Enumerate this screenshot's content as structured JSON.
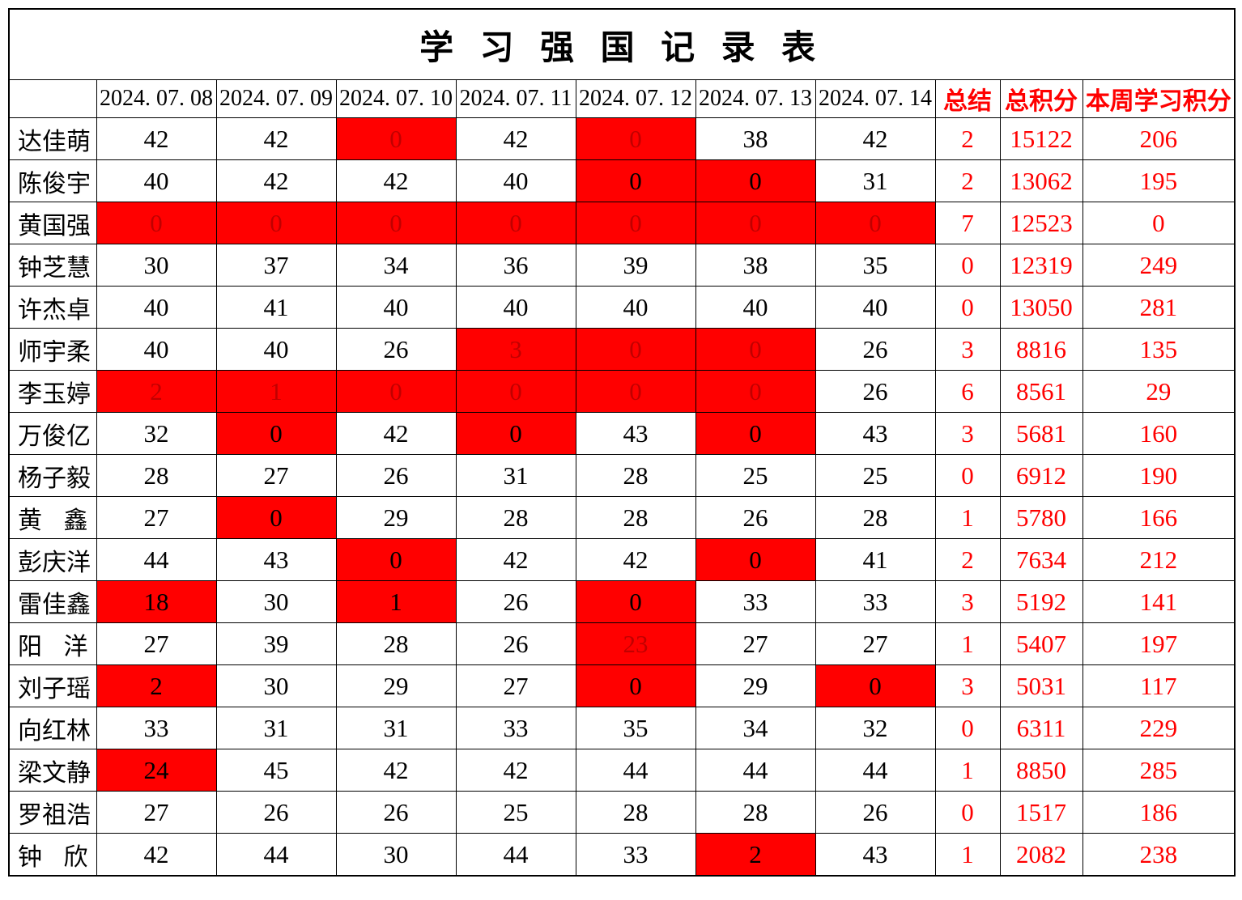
{
  "title": "学 习 强 国 记 录 表",
  "colors": {
    "background": "#ffffff",
    "grid_line": "#000000",
    "text": "#000000",
    "accent_text": "#ff0000",
    "highlight_bg": "#ff0000",
    "highlight_text_dark": "#c00000",
    "highlight_text_black": "#000000"
  },
  "table": {
    "columns": [
      {
        "label": "",
        "type": "corner"
      },
      {
        "label": "2024. 07. 08",
        "type": "date"
      },
      {
        "label": "2024. 07. 09",
        "type": "date"
      },
      {
        "label": "2024. 07. 10",
        "type": "date"
      },
      {
        "label": "2024. 07. 11",
        "type": "date"
      },
      {
        "label": "2024. 07. 12",
        "type": "date"
      },
      {
        "label": "2024. 07. 13",
        "type": "date"
      },
      {
        "label": "2024. 07. 14",
        "type": "date"
      },
      {
        "label": "总结",
        "type": "summary"
      },
      {
        "label": "总积分",
        "type": "summary"
      },
      {
        "label": "本周学习积分",
        "type": "summary"
      }
    ],
    "rows": [
      {
        "name": "达佳萌",
        "days": [
          {
            "v": "42"
          },
          {
            "v": "42"
          },
          {
            "v": "0",
            "bg": "red",
            "fg": "dark"
          },
          {
            "v": "42"
          },
          {
            "v": "0",
            "bg": "red",
            "fg": "dark"
          },
          {
            "v": "38"
          },
          {
            "v": "42"
          }
        ],
        "summary": "2",
        "total_points": "15122",
        "week_points": "206"
      },
      {
        "name": "陈俊宇",
        "days": [
          {
            "v": "40"
          },
          {
            "v": "42"
          },
          {
            "v": "42"
          },
          {
            "v": "40"
          },
          {
            "v": "0",
            "bg": "red",
            "fg": "black"
          },
          {
            "v": "0",
            "bg": "red",
            "fg": "black"
          },
          {
            "v": "31"
          }
        ],
        "summary": "2",
        "total_points": "13062",
        "week_points": "195"
      },
      {
        "name": "黄国强",
        "days": [
          {
            "v": "0",
            "bg": "red",
            "fg": "dark"
          },
          {
            "v": "0",
            "bg": "red",
            "fg": "dark"
          },
          {
            "v": "0",
            "bg": "red",
            "fg": "dark"
          },
          {
            "v": "0",
            "bg": "red",
            "fg": "dark"
          },
          {
            "v": "0",
            "bg": "red",
            "fg": "dark"
          },
          {
            "v": "0",
            "bg": "red",
            "fg": "dark"
          },
          {
            "v": "0",
            "bg": "red",
            "fg": "dark"
          }
        ],
        "summary": "7",
        "total_points": "12523",
        "week_points": "0"
      },
      {
        "name": "钟芝慧",
        "days": [
          {
            "v": "30"
          },
          {
            "v": "37"
          },
          {
            "v": "34"
          },
          {
            "v": "36"
          },
          {
            "v": "39"
          },
          {
            "v": "38"
          },
          {
            "v": "35"
          }
        ],
        "summary": "0",
        "total_points": "12319",
        "week_points": "249"
      },
      {
        "name": "许杰卓",
        "days": [
          {
            "v": "40"
          },
          {
            "v": "41"
          },
          {
            "v": "40"
          },
          {
            "v": "40"
          },
          {
            "v": "40"
          },
          {
            "v": "40"
          },
          {
            "v": "40"
          }
        ],
        "summary": "0",
        "total_points": "13050",
        "week_points": "281"
      },
      {
        "name": "师宇柔",
        "days": [
          {
            "v": "40"
          },
          {
            "v": "40"
          },
          {
            "v": "26"
          },
          {
            "v": "3",
            "bg": "red",
            "fg": "dark"
          },
          {
            "v": "0",
            "bg": "red",
            "fg": "dark"
          },
          {
            "v": "0",
            "bg": "red",
            "fg": "dark"
          },
          {
            "v": "26"
          }
        ],
        "summary": "3",
        "total_points": "8816",
        "week_points": "135"
      },
      {
        "name": "李玉婷",
        "days": [
          {
            "v": "2",
            "bg": "red",
            "fg": "dark"
          },
          {
            "v": "1",
            "bg": "red",
            "fg": "dark"
          },
          {
            "v": "0",
            "bg": "red",
            "fg": "dark"
          },
          {
            "v": "0",
            "bg": "red",
            "fg": "dark"
          },
          {
            "v": "0",
            "bg": "red",
            "fg": "dark"
          },
          {
            "v": "0",
            "bg": "red",
            "fg": "dark"
          },
          {
            "v": "26"
          }
        ],
        "summary": "6",
        "total_points": "8561",
        "week_points": "29"
      },
      {
        "name": "万俊亿",
        "days": [
          {
            "v": "32"
          },
          {
            "v": "0",
            "bg": "red",
            "fg": "black"
          },
          {
            "v": "42"
          },
          {
            "v": "0",
            "bg": "red",
            "fg": "black"
          },
          {
            "v": "43"
          },
          {
            "v": "0",
            "bg": "red",
            "fg": "black"
          },
          {
            "v": "43"
          }
        ],
        "summary": "3",
        "total_points": "5681",
        "week_points": "160"
      },
      {
        "name": "杨子毅",
        "days": [
          {
            "v": "28"
          },
          {
            "v": "27"
          },
          {
            "v": "26"
          },
          {
            "v": "31"
          },
          {
            "v": "28"
          },
          {
            "v": "25"
          },
          {
            "v": "25"
          }
        ],
        "summary": "0",
        "total_points": "6912",
        "week_points": "190"
      },
      {
        "name": "黄 鑫",
        "days": [
          {
            "v": "27"
          },
          {
            "v": "0",
            "bg": "red",
            "fg": "black"
          },
          {
            "v": "29"
          },
          {
            "v": "28"
          },
          {
            "v": "28"
          },
          {
            "v": "26"
          },
          {
            "v": "28"
          }
        ],
        "summary": "1",
        "total_points": "5780",
        "week_points": "166"
      },
      {
        "name": "彭庆洋",
        "days": [
          {
            "v": "44"
          },
          {
            "v": "43"
          },
          {
            "v": "0",
            "bg": "red",
            "fg": "black"
          },
          {
            "v": "42"
          },
          {
            "v": "42"
          },
          {
            "v": "0",
            "bg": "red",
            "fg": "black"
          },
          {
            "v": "41"
          }
        ],
        "summary": "2",
        "total_points": "7634",
        "week_points": "212"
      },
      {
        "name": "雷佳鑫",
        "days": [
          {
            "v": "18",
            "bg": "red",
            "fg": "black"
          },
          {
            "v": "30"
          },
          {
            "v": "1",
            "bg": "red",
            "fg": "black"
          },
          {
            "v": "26"
          },
          {
            "v": "0",
            "bg": "red",
            "fg": "black"
          },
          {
            "v": "33"
          },
          {
            "v": "33"
          }
        ],
        "summary": "3",
        "total_points": "5192",
        "week_points": "141"
      },
      {
        "name": "阳 洋",
        "days": [
          {
            "v": "27"
          },
          {
            "v": "39"
          },
          {
            "v": "28"
          },
          {
            "v": "26"
          },
          {
            "v": "23",
            "bg": "red",
            "fg": "dark"
          },
          {
            "v": "27"
          },
          {
            "v": "27"
          }
        ],
        "summary": "1",
        "total_points": "5407",
        "week_points": "197"
      },
      {
        "name": "刘子瑶",
        "days": [
          {
            "v": "2",
            "bg": "red",
            "fg": "black"
          },
          {
            "v": "30"
          },
          {
            "v": "29"
          },
          {
            "v": "27"
          },
          {
            "v": "0",
            "bg": "red",
            "fg": "black"
          },
          {
            "v": "29"
          },
          {
            "v": "0",
            "bg": "red",
            "fg": "black"
          }
        ],
        "summary": "3",
        "total_points": "5031",
        "week_points": "117"
      },
      {
        "name": "向红林",
        "days": [
          {
            "v": "33"
          },
          {
            "v": "31"
          },
          {
            "v": "31"
          },
          {
            "v": "33"
          },
          {
            "v": "35"
          },
          {
            "v": "34"
          },
          {
            "v": "32"
          }
        ],
        "summary": "0",
        "total_points": "6311",
        "week_points": "229"
      },
      {
        "name": "梁文静",
        "days": [
          {
            "v": "24",
            "bg": "red",
            "fg": "black"
          },
          {
            "v": "45"
          },
          {
            "v": "42"
          },
          {
            "v": "42"
          },
          {
            "v": "44"
          },
          {
            "v": "44"
          },
          {
            "v": "44"
          }
        ],
        "summary": "1",
        "total_points": "8850",
        "week_points": "285"
      },
      {
        "name": "罗祖浩",
        "days": [
          {
            "v": "27"
          },
          {
            "v": "26"
          },
          {
            "v": "26"
          },
          {
            "v": "25"
          },
          {
            "v": "28"
          },
          {
            "v": "28"
          },
          {
            "v": "26"
          }
        ],
        "summary": "0",
        "total_points": "1517",
        "week_points": "186"
      },
      {
        "name": "钟 欣",
        "days": [
          {
            "v": "42"
          },
          {
            "v": "44"
          },
          {
            "v": "30"
          },
          {
            "v": "44"
          },
          {
            "v": "33"
          },
          {
            "v": "2",
            "bg": "red",
            "fg": "black"
          },
          {
            "v": "43"
          }
        ],
        "summary": "1",
        "total_points": "2082",
        "week_points": "238"
      }
    ]
  }
}
